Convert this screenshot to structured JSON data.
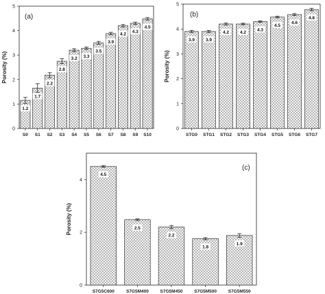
{
  "chart_data": [
    {
      "type": "bar",
      "panel_label": "(a)",
      "ylabel": "Porosity (%)",
      "ylim": [
        0,
        5
      ],
      "yticks": [
        0,
        1,
        2,
        3,
        4,
        5
      ],
      "categories": [
        "S0",
        "S1",
        "S2",
        "S3",
        "S4",
        "S5",
        "S6",
        "S7",
        "S8",
        "S9",
        "S10"
      ],
      "values": [
        1.15,
        1.65,
        2.18,
        2.75,
        3.2,
        3.28,
        3.5,
        3.88,
        4.2,
        4.3,
        4.48
      ],
      "errors": [
        0.12,
        0.18,
        0.1,
        0.1,
        0.06,
        0.05,
        0.06,
        0.05,
        0.05,
        0.05,
        0.05
      ],
      "data_labels": [
        "1.2",
        "1.7",
        "2.2",
        "2.8",
        "3.2",
        "3.3",
        "3.5",
        "3.9",
        "4.2",
        "4.3",
        "4.5"
      ]
    },
    {
      "type": "bar",
      "panel_label": "(b)",
      "ylabel": "Porosity (%)",
      "ylim": [
        0,
        5
      ],
      "yticks": [
        0,
        1,
        2,
        3,
        4,
        5
      ],
      "categories": [
        "STG0",
        "STG1",
        "STG2",
        "STG3",
        "STG4",
        "STG5",
        "STG6",
        "STG7"
      ],
      "values": [
        3.9,
        3.9,
        4.2,
        4.2,
        4.3,
        4.48,
        4.58,
        4.78
      ],
      "errors": [
        0.04,
        0.04,
        0.04,
        0.03,
        0.03,
        0.03,
        0.04,
        0.05
      ],
      "data_labels": [
        "3.9",
        "3.9",
        "4.2",
        "4.2",
        "4.3",
        "4.5",
        "4.6",
        "4.8"
      ]
    },
    {
      "type": "bar",
      "panel_label": "(c)",
      "ylabel": "Porosity (%)",
      "ylim": [
        0,
        5
      ],
      "yticks": [
        0,
        2,
        4
      ],
      "categories": [
        "S7G5C600",
        "S7G5M400",
        "S7G5M450",
        "S7G5M500",
        "S7G5M550"
      ],
      "values": [
        4.5,
        2.48,
        2.2,
        1.76,
        1.88
      ],
      "errors": [
        0.03,
        0.03,
        0.06,
        0.04,
        0.07
      ],
      "data_labels": [
        "4.5",
        "2.5",
        "2.2",
        "1.8",
        "1.9"
      ]
    }
  ],
  "colors": {
    "bar_fill": "#ffffff",
    "bar_hatch": "#8a8a8a",
    "axis": "#222222"
  }
}
